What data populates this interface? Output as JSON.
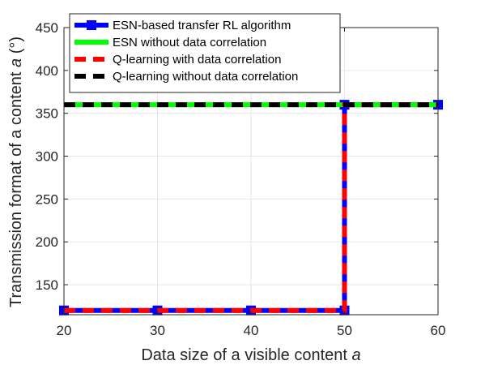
{
  "chart_data": {
    "type": "line",
    "xlabel_main": "Data size of a visible content ",
    "xlabel_var": "a",
    "ylabel_main": "Transmission format of a content ",
    "ylabel_var": "a",
    "ylabel_unit": " (°)",
    "xlim": [
      20,
      60
    ],
    "ylim": [
      115,
      450
    ],
    "xticks": [
      20,
      30,
      40,
      50,
      60
    ],
    "yticks": [
      150,
      200,
      250,
      300,
      350,
      400,
      450
    ],
    "grid": true,
    "legend_position": "top",
    "series": [
      {
        "name": "ESN-based transfer RL algorithm",
        "color": "#0000ff",
        "style": "solid",
        "marker": "square",
        "x": [
          20,
          30,
          40,
          50,
          50,
          60
        ],
        "y": [
          120,
          120,
          120,
          120,
          360,
          360
        ]
      },
      {
        "name": "ESN without data correlation",
        "color": "#00ff00",
        "style": "solid",
        "marker": "none",
        "x": [
          20,
          30,
          40,
          50,
          60
        ],
        "y": [
          360,
          360,
          360,
          360,
          360
        ]
      },
      {
        "name": "Q-learning with data correlation",
        "color": "#ff0000",
        "style": "dashed",
        "marker": "none",
        "x": [
          20,
          30,
          40,
          50,
          50,
          60
        ],
        "y": [
          120,
          120,
          120,
          120,
          360,
          360
        ]
      },
      {
        "name": "Q-learning without data correlation",
        "color": "#000000",
        "style": "dashed",
        "marker": "none",
        "x": [
          20,
          30,
          40,
          50,
          60
        ],
        "y": [
          360,
          360,
          360,
          360,
          360
        ]
      }
    ]
  }
}
